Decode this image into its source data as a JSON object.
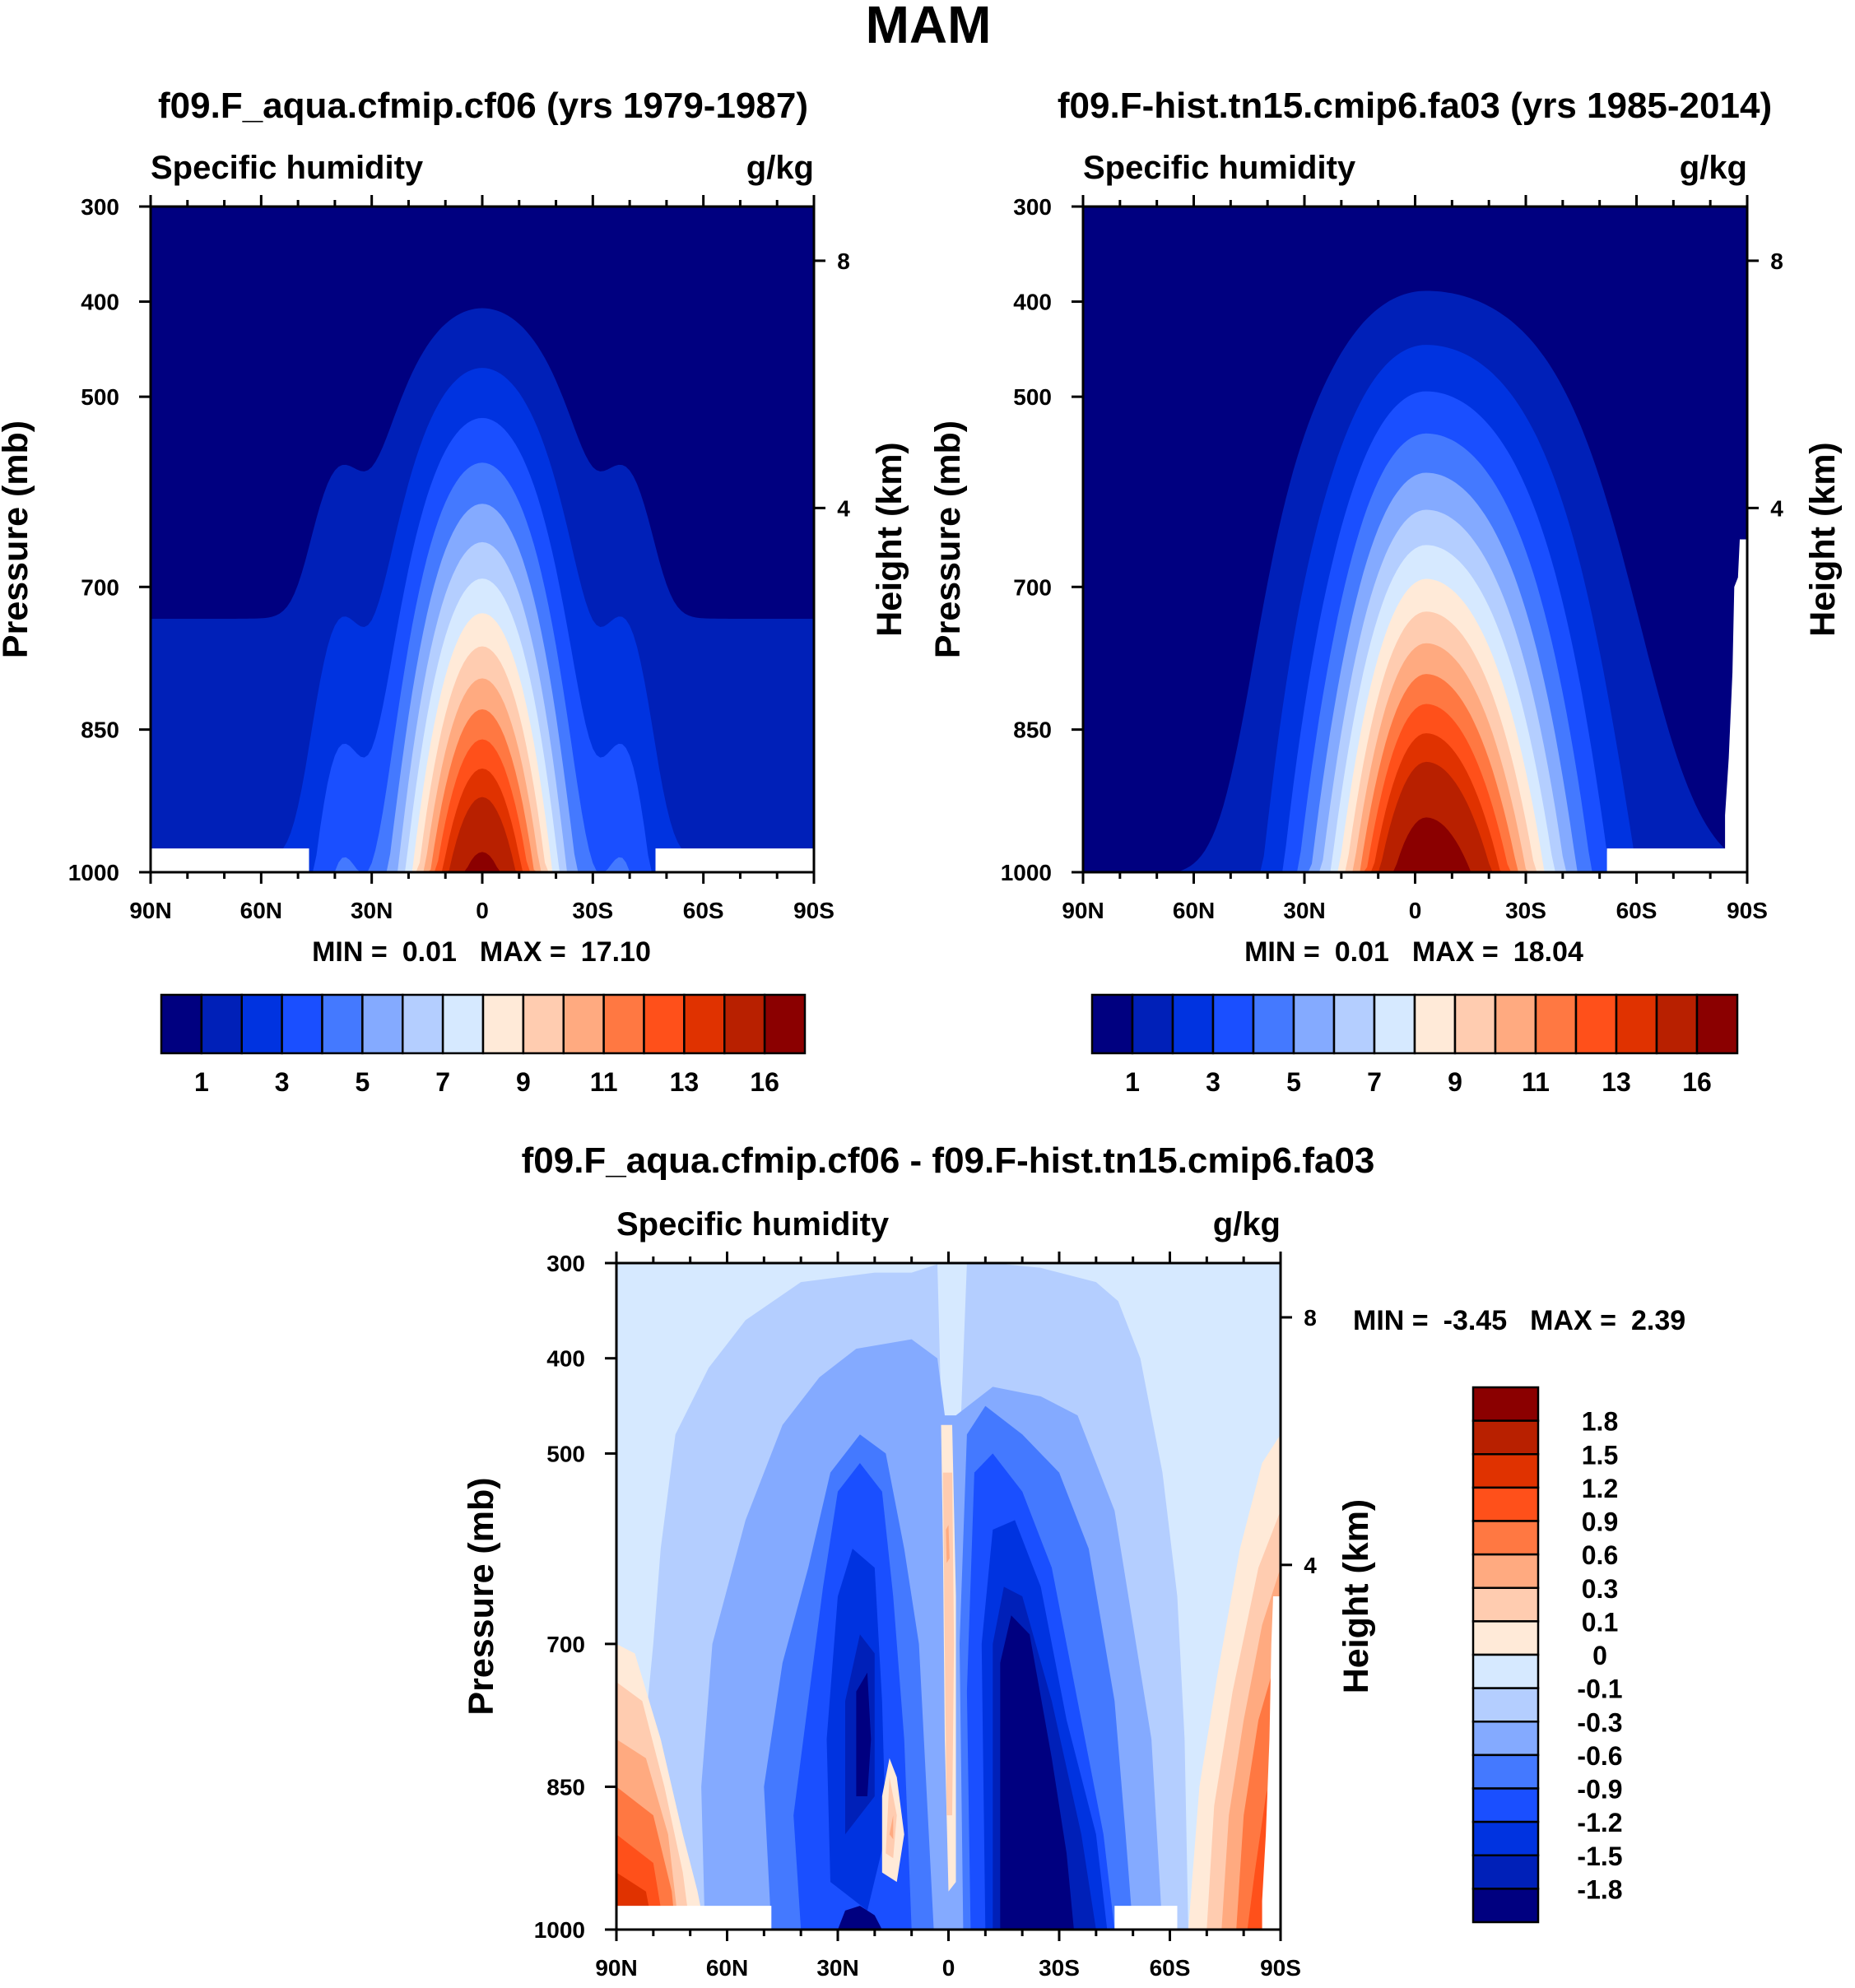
{
  "figure_title": "MAM",
  "colors": [
    "#000080",
    "#0020B8",
    "#0033E0",
    "#1A4FFF",
    "#4479FF",
    "#84AAFF",
    "#B4CEFF",
    "#D6E9FF",
    "#FFEAD8",
    "#FFCCB0",
    "#FFAA80",
    "#FF7842",
    "#FF501A",
    "#E03200",
    "#B82000",
    "#8B0000"
  ],
  "chart_data": [
    {
      "type": "heatmap",
      "title": "f09.F_aqua.cfmip.cf06 (yrs 1979-1987)",
      "left_label": "Specific humidity",
      "units": "g/kg",
      "ylabel": "Pressure (mb)",
      "ylabel_right": "Height (km)",
      "x_ticks": [
        "90N",
        "60N",
        "30N",
        "0",
        "30S",
        "60S",
        "90S"
      ],
      "x_tick_values": [
        90,
        60,
        30,
        0,
        -30,
        -60,
        -90
      ],
      "y_ticks": [
        "300",
        "400",
        "500",
        "700",
        "850",
        "1000"
      ],
      "y_tick_values": [
        300,
        400,
        500,
        700,
        850,
        1000
      ],
      "y_right_ticks": [
        "8",
        "4"
      ],
      "y_right_tick_pressure": [
        357,
        617
      ],
      "xlim": [
        90,
        -90
      ],
      "ylim": [
        300,
        1000
      ],
      "min_label": "MIN =",
      "min": "0.01",
      "max_label": "MAX =",
      "max": "17.10",
      "levels": [
        1,
        2,
        3,
        4,
        5,
        6,
        7,
        8,
        9,
        10,
        11,
        12,
        13,
        14,
        16
      ],
      "colorbar_labels": [
        "1",
        "3",
        "5",
        "7",
        "9",
        "11",
        "13",
        "16"
      ]
    },
    {
      "type": "heatmap",
      "title": "f09.F-hist.tn15.cmip6.fa03 (yrs 1985-2014)",
      "left_label": "Specific humidity",
      "units": "g/kg",
      "ylabel": "Pressure (mb)",
      "ylabel_right": "Height (km)",
      "x_ticks": [
        "90N",
        "60N",
        "30N",
        "0",
        "30S",
        "60S",
        "90S"
      ],
      "x_tick_values": [
        90,
        60,
        30,
        0,
        -30,
        -60,
        -90
      ],
      "y_ticks": [
        "300",
        "400",
        "500",
        "700",
        "850",
        "1000"
      ],
      "y_tick_values": [
        300,
        400,
        500,
        700,
        850,
        1000
      ],
      "y_right_ticks": [
        "8",
        "4"
      ],
      "y_right_tick_pressure": [
        357,
        617
      ],
      "xlim": [
        90,
        -90
      ],
      "ylim": [
        300,
        1000
      ],
      "min_label": "MIN =",
      "min": "0.01",
      "max_label": "MAX =",
      "max": "18.04",
      "levels": [
        1,
        2,
        3,
        4,
        5,
        6,
        7,
        8,
        9,
        10,
        11,
        12,
        13,
        14,
        16
      ],
      "colorbar_labels": [
        "1",
        "3",
        "5",
        "7",
        "9",
        "11",
        "13",
        "16"
      ]
    },
    {
      "type": "heatmap",
      "title": "f09.F_aqua.cfmip.cf06 - f09.F-hist.tn15.cmip6.fa03",
      "left_label": "Specific humidity",
      "units": "g/kg",
      "ylabel": "Pressure (mb)",
      "ylabel_right": "Height (km)",
      "x_ticks": [
        "90N",
        "60N",
        "30N",
        "0",
        "30S",
        "60S",
        "90S"
      ],
      "x_tick_values": [
        90,
        60,
        30,
        0,
        -30,
        -60,
        -90
      ],
      "y_ticks": [
        "300",
        "400",
        "500",
        "700",
        "850",
        "1000"
      ],
      "y_tick_values": [
        300,
        400,
        500,
        700,
        850,
        1000
      ],
      "y_right_ticks": [
        "8",
        "4"
      ],
      "y_right_tick_pressure": [
        357,
        617
      ],
      "xlim": [
        90,
        -90
      ],
      "ylim": [
        300,
        1000
      ],
      "min_label": "MIN =",
      "min": "-3.45",
      "max_label": "MAX =",
      "max": "2.39",
      "levels": [
        -1.8,
        -1.5,
        -1.2,
        -0.9,
        -0.6,
        -0.3,
        -0.1,
        0,
        0.1,
        0.3,
        0.6,
        0.9,
        1.2,
        1.5,
        1.8
      ],
      "colorbar_labels": [
        "1.8",
        "1.5",
        "1.2",
        "0.9",
        "0.6",
        "0.3",
        "0.1",
        "0",
        "-0.1",
        "-0.3",
        "-0.6",
        "-0.9",
        "-1.2",
        "-1.5",
        "-1.8"
      ]
    }
  ]
}
